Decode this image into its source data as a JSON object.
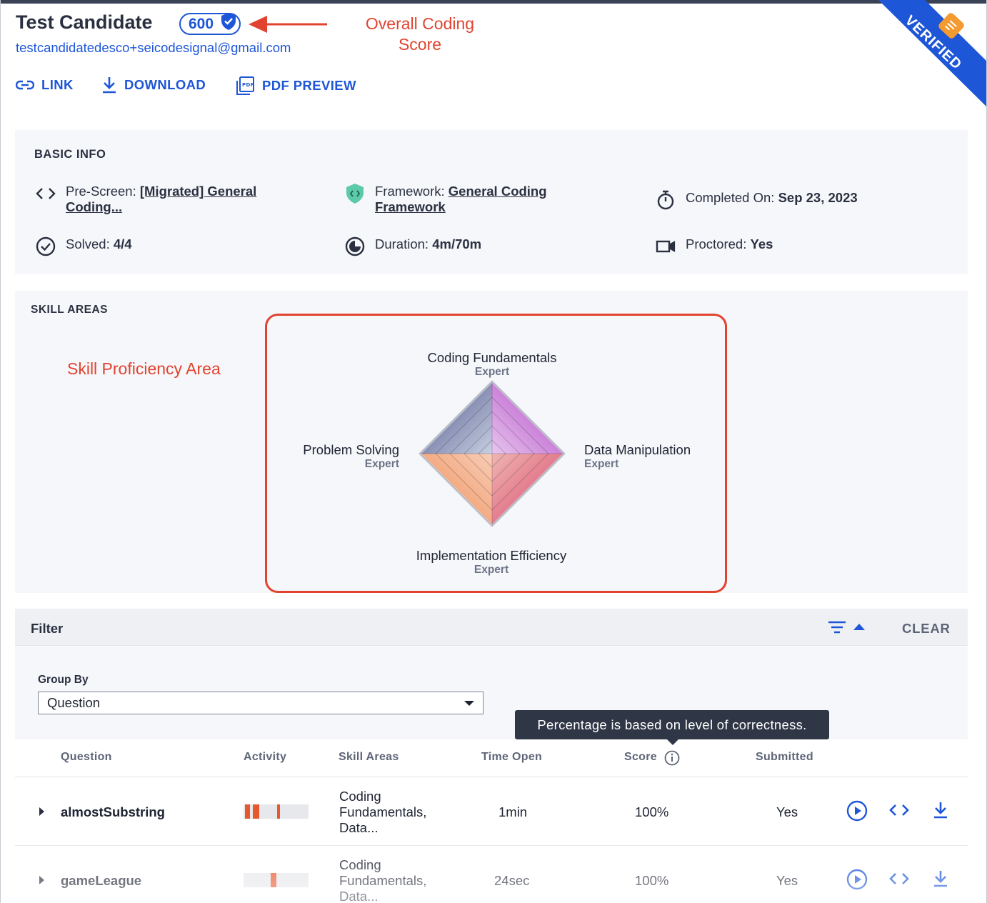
{
  "candidate": {
    "name": "Test Candidate",
    "score": "600",
    "email": "testcandidatedesco+seicodesignal@gmail.com"
  },
  "annotations": {
    "score_line1": "Overall Coding",
    "score_line2": "Score",
    "skill_area": "Skill Proficiency Area"
  },
  "actions": {
    "link": "LINK",
    "download": "DOWNLOAD",
    "pdf_preview": "PDF PREVIEW"
  },
  "ribbon": {
    "label": "VERIFIED"
  },
  "basic_info": {
    "title": "BASIC INFO",
    "prescreen_label": "Pre-Screen:",
    "prescreen_value_1": "[Migrated] General",
    "prescreen_value_2": "Coding...",
    "framework_label": "Framework:",
    "framework_value_1": "General Coding",
    "framework_value_2": "Framework",
    "completed_label": "Completed On:",
    "completed_value": "Sep 23, 2023",
    "solved_label": "Solved:",
    "solved_value": "4/4",
    "duration_label": "Duration:",
    "duration_value": "4m/70m",
    "proctored_label": "Proctored:",
    "proctored_value": "Yes"
  },
  "skill_areas": {
    "title": "SKILL AREAS",
    "axes": [
      {
        "name": "Coding Fundamentals",
        "level": "Expert"
      },
      {
        "name": "Data Manipulation",
        "level": "Expert"
      },
      {
        "name": "Implementation Efficiency",
        "level": "Expert"
      },
      {
        "name": "Problem Solving",
        "level": "Expert"
      }
    ]
  },
  "filter": {
    "title": "Filter",
    "clear": "CLEAR",
    "group_by_label": "Group By",
    "group_by_value": "Question"
  },
  "tooltip": "Percentage is based on level of correctness.",
  "table": {
    "headers": {
      "question": "Question",
      "activity": "Activity",
      "skill_areas": "Skill Areas",
      "time_open": "Time Open",
      "score": "Score",
      "submitted": "Submitted"
    },
    "rows": [
      {
        "question": "almostSubstring",
        "skills_1": "Coding",
        "skills_2": "Fundamentals,",
        "skills_3": "Data...",
        "time_open": "1min",
        "score": "100%",
        "submitted": "Yes"
      },
      {
        "question": "gameLeague",
        "skills_1": "Coding",
        "skills_2": "Fundamentals,",
        "skills_3": "Data...",
        "time_open": "24sec",
        "score": "100%",
        "submitted": "Yes"
      }
    ]
  },
  "colors": {
    "accent": "#1e56d8",
    "annotation": "#e2432f",
    "ribbon": "#1e56d8",
    "activity": "#e8582f"
  }
}
